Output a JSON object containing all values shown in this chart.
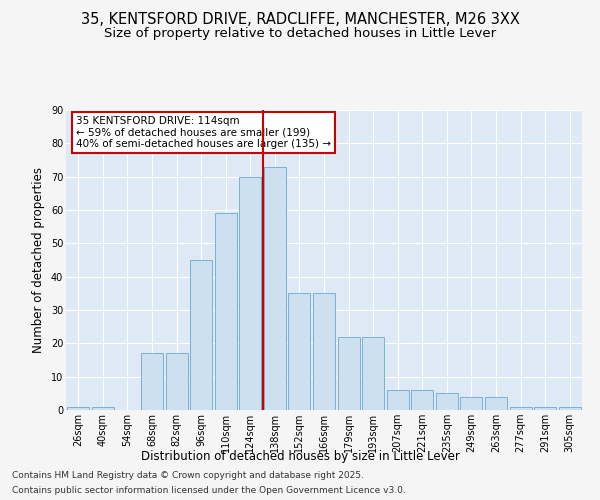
{
  "title_line1": "35, KENTSFORD DRIVE, RADCLIFFE, MANCHESTER, M26 3XX",
  "title_line2": "Size of property relative to detached houses in Little Lever",
  "xlabel": "Distribution of detached houses by size in Little Lever",
  "ylabel": "Number of detached properties",
  "bar_labels": [
    "26sqm",
    "40sqm",
    "54sqm",
    "68sqm",
    "82sqm",
    "96sqm",
    "110sqm",
    "124sqm",
    "138sqm",
    "152sqm",
    "166sqm",
    "179sqm",
    "193sqm",
    "207sqm",
    "221sqm",
    "235sqm",
    "249sqm",
    "263sqm",
    "277sqm",
    "291sqm",
    "305sqm"
  ],
  "bar_values": [
    1,
    1,
    0,
    17,
    17,
    45,
    59,
    70,
    73,
    35,
    35,
    22,
    22,
    6,
    6,
    5,
    4,
    4,
    1,
    1,
    1
  ],
  "bar_color": "#cce0f0",
  "bar_edge_color": "#7ab0d4",
  "vline_pos": 7.5,
  "vline_color": "#cc0000",
  "annotation_text": "35 KENTSFORD DRIVE: 114sqm\n← 59% of detached houses are smaller (199)\n40% of semi-detached houses are larger (135) →",
  "annotation_box_color": "#ffffff",
  "annotation_box_edge": "#cc0000",
  "ylim": [
    0,
    90
  ],
  "yticks": [
    0,
    10,
    20,
    30,
    40,
    50,
    60,
    70,
    80,
    90
  ],
  "bg_color": "#ddeaf5",
  "fig_bg_color": "#f5f5f5",
  "grid_color": "#ffffff",
  "footer_line1": "Contains HM Land Registry data © Crown copyright and database right 2025.",
  "footer_line2": "Contains public sector information licensed under the Open Government Licence v3.0.",
  "title_fontsize": 10.5,
  "subtitle_fontsize": 9.5,
  "axis_label_fontsize": 8.5,
  "tick_fontsize": 7,
  "annotation_fontsize": 7.5,
  "footer_fontsize": 6.5
}
